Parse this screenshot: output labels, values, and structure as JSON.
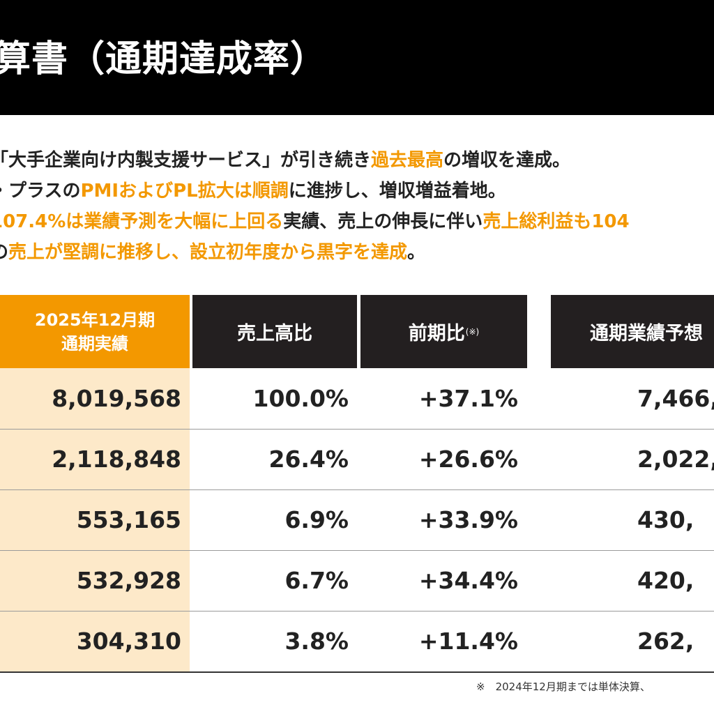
{
  "title": "算書（通期達成率）",
  "bullets": [
    {
      "parts": [
        {
          "t": "「大手企業向け内製支援サービス」が引き続き",
          "h": false
        },
        {
          "t": "過去最高",
          "h": true
        },
        {
          "t": "の増収を達成。",
          "h": false
        }
      ]
    },
    {
      "parts": [
        {
          "t": "・プラスの",
          "h": false
        },
        {
          "t": "PMIおよびPL拡大は順調",
          "h": true
        },
        {
          "t": "に進捗し、増収増益着地。",
          "h": false
        }
      ]
    },
    {
      "parts": [
        {
          "t": "107.4%は業績予測を大幅に上回る",
          "h": true
        },
        {
          "t": "実績、売上の伸長に伴い",
          "h": false
        },
        {
          "t": "売上総利益も104",
          "h": true
        }
      ]
    },
    {
      "parts": [
        {
          "t": "の",
          "h": false
        },
        {
          "t": "売上が堅調に推移し、設立初年度から黒字を達成",
          "h": true
        },
        {
          "t": "。",
          "h": false
        }
      ]
    }
  ],
  "table": {
    "headers": {
      "current_line1": "2025年12月期",
      "current_line2": "通期実績",
      "ratio": "売上高比",
      "yoy": "前期比",
      "yoy_note": "(※)",
      "forecast": "通期業績予想"
    },
    "rows": [
      {
        "current": "8,019,568",
        "ratio": "100.0%",
        "yoy": "+37.1%",
        "forecast": "7,466,"
      },
      {
        "current": "2,118,848",
        "ratio": "26.4%",
        "yoy": "+26.6%",
        "forecast": "2,022,"
      },
      {
        "current": "553,165",
        "ratio": "6.9%",
        "yoy": "+33.9%",
        "forecast": "430,"
      },
      {
        "current": "532,928",
        "ratio": "6.7%",
        "yoy": "+34.4%",
        "forecast": "420,"
      },
      {
        "current": "304,310",
        "ratio": "3.8%",
        "yoy": "+11.4%",
        "forecast": "262,"
      }
    ]
  },
  "footnote": "※　2024年12月期までは単体決算、",
  "colors": {
    "accent": "#f39800",
    "header_dark": "#231f20",
    "current_column_bg": "#fde9c9"
  }
}
